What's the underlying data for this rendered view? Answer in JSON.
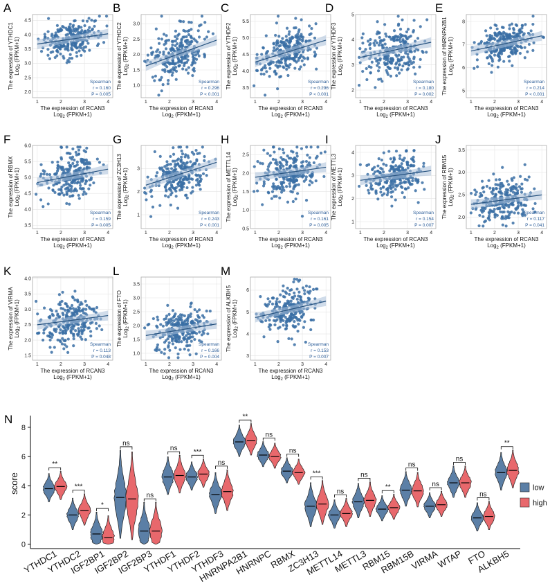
{
  "chart_data": [
    {
      "type": "scatter",
      "panel": "A",
      "gene": "YTHDC1",
      "ylabel": "The expression of YTHDC1",
      "ylabel_unit": "Log2 (FPKM+1)",
      "xlabel": "The expression of RCAN3",
      "xlabel_unit": "Log2 (FPKM+1)",
      "xlim": [
        0.8,
        4.2
      ],
      "xticks": [
        1,
        2,
        3,
        4
      ],
      "ylim": [
        1.8,
        4.7
      ],
      "yticks": [
        2.0,
        2.5,
        3.0,
        3.5,
        4.0,
        4.5
      ],
      "yfmt": 1,
      "fit": {
        "slope": 0.12,
        "intercept": 3.55
      },
      "y_mean": 3.85,
      "y_sd": 0.32,
      "method": "Spearman",
      "r": "r = 0.160",
      "p": "P = 0.005"
    },
    {
      "type": "scatter",
      "panel": "B",
      "gene": "YTHDC2",
      "ylabel": "The expression of YTHDC2",
      "ylabel_unit": "Log2 (FPKM+1)",
      "xlabel": "The expression of RCAN3",
      "xlabel_unit": "Log2 (FPKM+1)",
      "xlim": [
        0.8,
        4.2
      ],
      "xticks": [
        1,
        2,
        3,
        4
      ],
      "ylim": [
        0.6,
        3.3
      ],
      "yticks": [
        1.0,
        1.5,
        2.0,
        2.5,
        3.0
      ],
      "yfmt": 1,
      "fit": {
        "slope": 0.28,
        "intercept": 1.35
      },
      "y_mean": 2.0,
      "y_sd": 0.45,
      "method": "Spearman",
      "r": "r = 0.296",
      "p": "P < 0.001"
    },
    {
      "type": "scatter",
      "panel": "C",
      "gene": "YTHDF2",
      "ylabel": "The expression of YTHDF2",
      "ylabel_unit": "Log2 (FPKM+1)",
      "xlabel": "The expression of RCAN3",
      "xlabel_unit": "Log2 (FPKM+1)",
      "xlim": [
        0.8,
        4.2
      ],
      "xticks": [
        1,
        2,
        3,
        4
      ],
      "ylim": [
        3.2,
        5.7
      ],
      "yticks": [
        3.5,
        4.0,
        4.5,
        5.0,
        5.5
      ],
      "yfmt": 1,
      "fit": {
        "slope": 0.22,
        "intercept": 4.05
      },
      "y_mean": 4.6,
      "y_sd": 0.33,
      "method": "Spearman",
      "r": "r = 0.296",
      "p": "P < 0.001"
    },
    {
      "type": "scatter",
      "panel": "D",
      "gene": "YTHDF3",
      "ylabel": "The expression of YTHDF3",
      "ylabel_unit": "Log2 (FPKM+1)",
      "xlabel": "The expression of RCAN3",
      "xlabel_unit": "Log2 (FPKM+1)",
      "xlim": [
        0.8,
        4.2
      ],
      "xticks": [
        1,
        2,
        3,
        4
      ],
      "ylim": [
        1.7,
        5.0
      ],
      "yticks": [
        2,
        3,
        4,
        5
      ],
      "yfmt": 0,
      "fit": {
        "slope": 0.2,
        "intercept": 3.1
      },
      "y_mean": 3.5,
      "y_sd": 0.5,
      "method": "Spearman",
      "r": "r = 0.180",
      "p": "P = 0.002"
    },
    {
      "type": "scatter",
      "panel": "E",
      "gene": "HNRNPA2B1",
      "ylabel": "The expression of HNRNPA2B1",
      "ylabel_unit": "Log2 (FPKM+1)",
      "xlabel": "The expression of RCAN3",
      "xlabel_unit": "Log2 (FPKM+1)",
      "xlim": [
        0.8,
        4.2
      ],
      "xticks": [
        1,
        2,
        3,
        4
      ],
      "ylim": [
        4.7,
        8.3
      ],
      "yticks": [
        5,
        6,
        7,
        8
      ],
      "yfmt": 0,
      "fit": {
        "slope": 0.22,
        "intercept": 6.5
      },
      "y_mean": 7.1,
      "y_sd": 0.4,
      "method": "Spearman",
      "r": "r = 0.214",
      "p": "P < 0.001"
    },
    {
      "type": "scatter",
      "panel": "F",
      "gene": "RBMX",
      "ylabel": "The expression of RBMX",
      "ylabel_unit": "Log2 (FPKM+1)",
      "xlabel": "The expression of RCAN3",
      "xlabel_unit": "Log2 (FPKM+1)",
      "xlim": [
        0.8,
        4.2
      ],
      "xticks": [
        1,
        2,
        3,
        4
      ],
      "ylim": [
        3.4,
        6.0
      ],
      "yticks": [
        3.5,
        4.0,
        4.5,
        5.0,
        5.5,
        6.0
      ],
      "yfmt": 1,
      "fit": {
        "slope": 0.14,
        "intercept": 4.7
      },
      "y_mean": 5.0,
      "y_sd": 0.35,
      "method": "Spearman",
      "r": "r = 0.159",
      "p": "P = 0.005"
    },
    {
      "type": "scatter",
      "panel": "G",
      "gene": "ZC3H13",
      "ylabel": "The expression of ZC3H13",
      "ylabel_unit": "Log2 (FPKM+1)",
      "xlabel": "The expression of RCAN3",
      "xlabel_unit": "Log2 (FPKM+1)",
      "xlim": [
        0.8,
        4.2
      ],
      "xticks": [
        1,
        2,
        3,
        4
      ],
      "ylim": [
        0.4,
        4.0
      ],
      "yticks": [
        1,
        2,
        3
      ],
      "yfmt": 0,
      "fit": {
        "slope": 0.33,
        "intercept": 1.95
      },
      "y_mean": 2.7,
      "y_sd": 0.5,
      "method": "Spearman",
      "r": "r = 0.243",
      "p": "P < 0.001"
    },
    {
      "type": "scatter",
      "panel": "H",
      "gene": "METTL14",
      "ylabel": "The expression of METTL14",
      "ylabel_unit": "Log2 (FPKM+1)",
      "xlabel": "The expression of RCAN3",
      "xlabel_unit": "Log2 (FPKM+1)",
      "xlim": [
        0.8,
        4.2
      ],
      "xticks": [
        1,
        2,
        3,
        4
      ],
      "ylim": [
        0.5,
        2.75
      ],
      "yticks": [
        0.5,
        1.0,
        1.5,
        2.0,
        2.5
      ],
      "yfmt": 1,
      "fit": {
        "slope": 0.09,
        "intercept": 1.8
      },
      "y_mean": 2.0,
      "y_sd": 0.32,
      "method": "Spearman",
      "r": "r = 0.161",
      "p": "P = 0.005"
    },
    {
      "type": "scatter",
      "panel": "I",
      "gene": "METTL3",
      "ylabel": "The expression of METTL3",
      "ylabel_unit": "Log2 (FPKM+1)",
      "xlabel": "The expression of RCAN3",
      "xlabel_unit": "Log2 (FPKM+1)",
      "xlim": [
        0.8,
        4.2
      ],
      "xticks": [
        1,
        2,
        3,
        4
      ],
      "ylim": [
        0.7,
        4.3
      ],
      "yticks": [
        1,
        2,
        3,
        4
      ],
      "yfmt": 0,
      "fit": {
        "slope": 0.14,
        "intercept": 2.65
      },
      "y_mean": 3.0,
      "y_sd": 0.45,
      "method": "Spearman",
      "r": "r = 0.154",
      "p": "P = 0.007"
    },
    {
      "type": "scatter",
      "panel": "J",
      "gene": "RBM15",
      "ylabel": "The expression of RBM15",
      "ylabel_unit": "Log2 (FPKM+1)",
      "xlabel": "The expression of RCAN3",
      "xlabel_unit": "Log2 (FPKM+1)",
      "xlim": [
        0.8,
        4.2
      ],
      "xticks": [
        1,
        2,
        3,
        4
      ],
      "ylim": [
        1.75,
        3.6
      ],
      "yticks": [
        2.0,
        2.5,
        3.0,
        3.5
      ],
      "yfmt": 1,
      "fit": {
        "slope": 0.07,
        "intercept": 2.22
      },
      "y_mean": 2.4,
      "y_sd": 0.25,
      "method": "Spearman",
      "r": "r = 0.117",
      "p": "P = 0.041"
    },
    {
      "type": "scatter",
      "panel": "K",
      "gene": "VIRMA",
      "ylabel": "The expression of VIRMA",
      "ylabel_unit": "Log2 (FPKM+1)",
      "xlabel": "The expression of RCAN3",
      "xlabel_unit": "Log2 (FPKM+1)",
      "xlim": [
        0.8,
        4.2
      ],
      "xticks": [
        1,
        2,
        3,
        4
      ],
      "ylim": [
        1.35,
        4.05
      ],
      "yticks": [
        1.5,
        2.0,
        2.5,
        3.0,
        3.5,
        4.0
      ],
      "yfmt": 1,
      "fit": {
        "slope": 0.1,
        "intercept": 2.4
      },
      "y_mean": 2.65,
      "y_sd": 0.35,
      "method": "Spearman",
      "r": "r = 0.113",
      "p": "P = 0.048"
    },
    {
      "type": "scatter",
      "panel": "L",
      "gene": "FTO",
      "ylabel": "The expression of FTO",
      "ylabel_unit": "Log2 (FPKM+1)",
      "xlabel": "The expression of RCAN3",
      "xlabel_unit": "Log2 (FPKM+1)",
      "xlim": [
        0.8,
        4.2
      ],
      "xticks": [
        1,
        2,
        3,
        4
      ],
      "ylim": [
        0.75,
        3.75
      ],
      "yticks": [
        1.0,
        1.5,
        2.0,
        2.5,
        3.0,
        3.5
      ],
      "yfmt": 1,
      "fit": {
        "slope": 0.14,
        "intercept": 1.5
      },
      "y_mean": 1.85,
      "y_sd": 0.35,
      "method": "Spearman",
      "r": "r = 0.166",
      "p": "P = 0.004"
    },
    {
      "type": "scatter",
      "panel": "M",
      "gene": "ALKBH5",
      "ylabel": "The expression of ALKBH5",
      "ylabel_unit": "Log2 (FPKM+1)",
      "xlabel": "The expression of RCAN3",
      "xlabel_unit": "Log2 (FPKM+1)",
      "xlim": [
        0.8,
        4.2
      ],
      "xticks": [
        1,
        2,
        3,
        4
      ],
      "ylim": [
        2.8,
        6.6
      ],
      "yticks": [
        3,
        4,
        5,
        6
      ],
      "yfmt": 0,
      "fit": {
        "slope": 0.25,
        "intercept": 4.5
      },
      "y_mean": 5.0,
      "y_sd": 0.5,
      "method": "Spearman",
      "r": "r = 0.153",
      "p": "P = 0.007"
    },
    {
      "type": "violin",
      "panel": "N",
      "ylabel": "score",
      "ylim": [
        -0.3,
        8.8
      ],
      "yticks": [
        0,
        2,
        4,
        6,
        8
      ],
      "categories": [
        "YTHDC1",
        "YTHDC2",
        "IGF2BP1",
        "IGF2BP2",
        "IGF2BP3",
        "YTHDF1",
        "YTHDF2",
        "YTHDF3",
        "HNRNPA2B1",
        "HNRNPC",
        "RBMX",
        "ZC3H13",
        "METTL14",
        "METTL3",
        "RBM15",
        "RBM15B",
        "VIRMA",
        "WTAP",
        "FTO",
        "ALKBH5"
      ],
      "series": [
        {
          "name": "low",
          "color": "#5b7fa6",
          "median": [
            3.8,
            2.0,
            0.7,
            3.2,
            0.9,
            4.6,
            4.6,
            3.4,
            7.0,
            6.1,
            5.0,
            2.6,
            2.0,
            2.9,
            2.4,
            3.7,
            2.6,
            4.2,
            1.8,
            4.9
          ]
        },
        {
          "name": "high",
          "color": "#e8686c",
          "median": [
            3.95,
            2.3,
            0.45,
            3.1,
            0.9,
            4.7,
            4.8,
            3.6,
            7.1,
            6.0,
            4.9,
            2.75,
            2.1,
            3.0,
            2.5,
            3.65,
            2.7,
            4.2,
            1.9,
            5.05
          ]
        }
      ],
      "spread": [
        0.9,
        1.0,
        1.3,
        2.8,
        1.7,
        1.2,
        0.9,
        1.3,
        1.0,
        0.8,
        0.8,
        1.4,
        0.9,
        1.1,
        0.8,
        1.1,
        0.8,
        1.0,
        0.9,
        1.2
      ],
      "significance": [
        "**",
        "***",
        "*",
        "ns",
        "ns",
        "ns",
        "***",
        "ns",
        "**",
        "ns",
        "ns",
        "***",
        "ns",
        "ns",
        "**",
        "ns",
        "ns",
        "ns",
        "ns",
        "**"
      ],
      "legend": {
        "labels": [
          "low",
          "high"
        ],
        "position": "right"
      }
    }
  ],
  "log_base_sub": "2"
}
